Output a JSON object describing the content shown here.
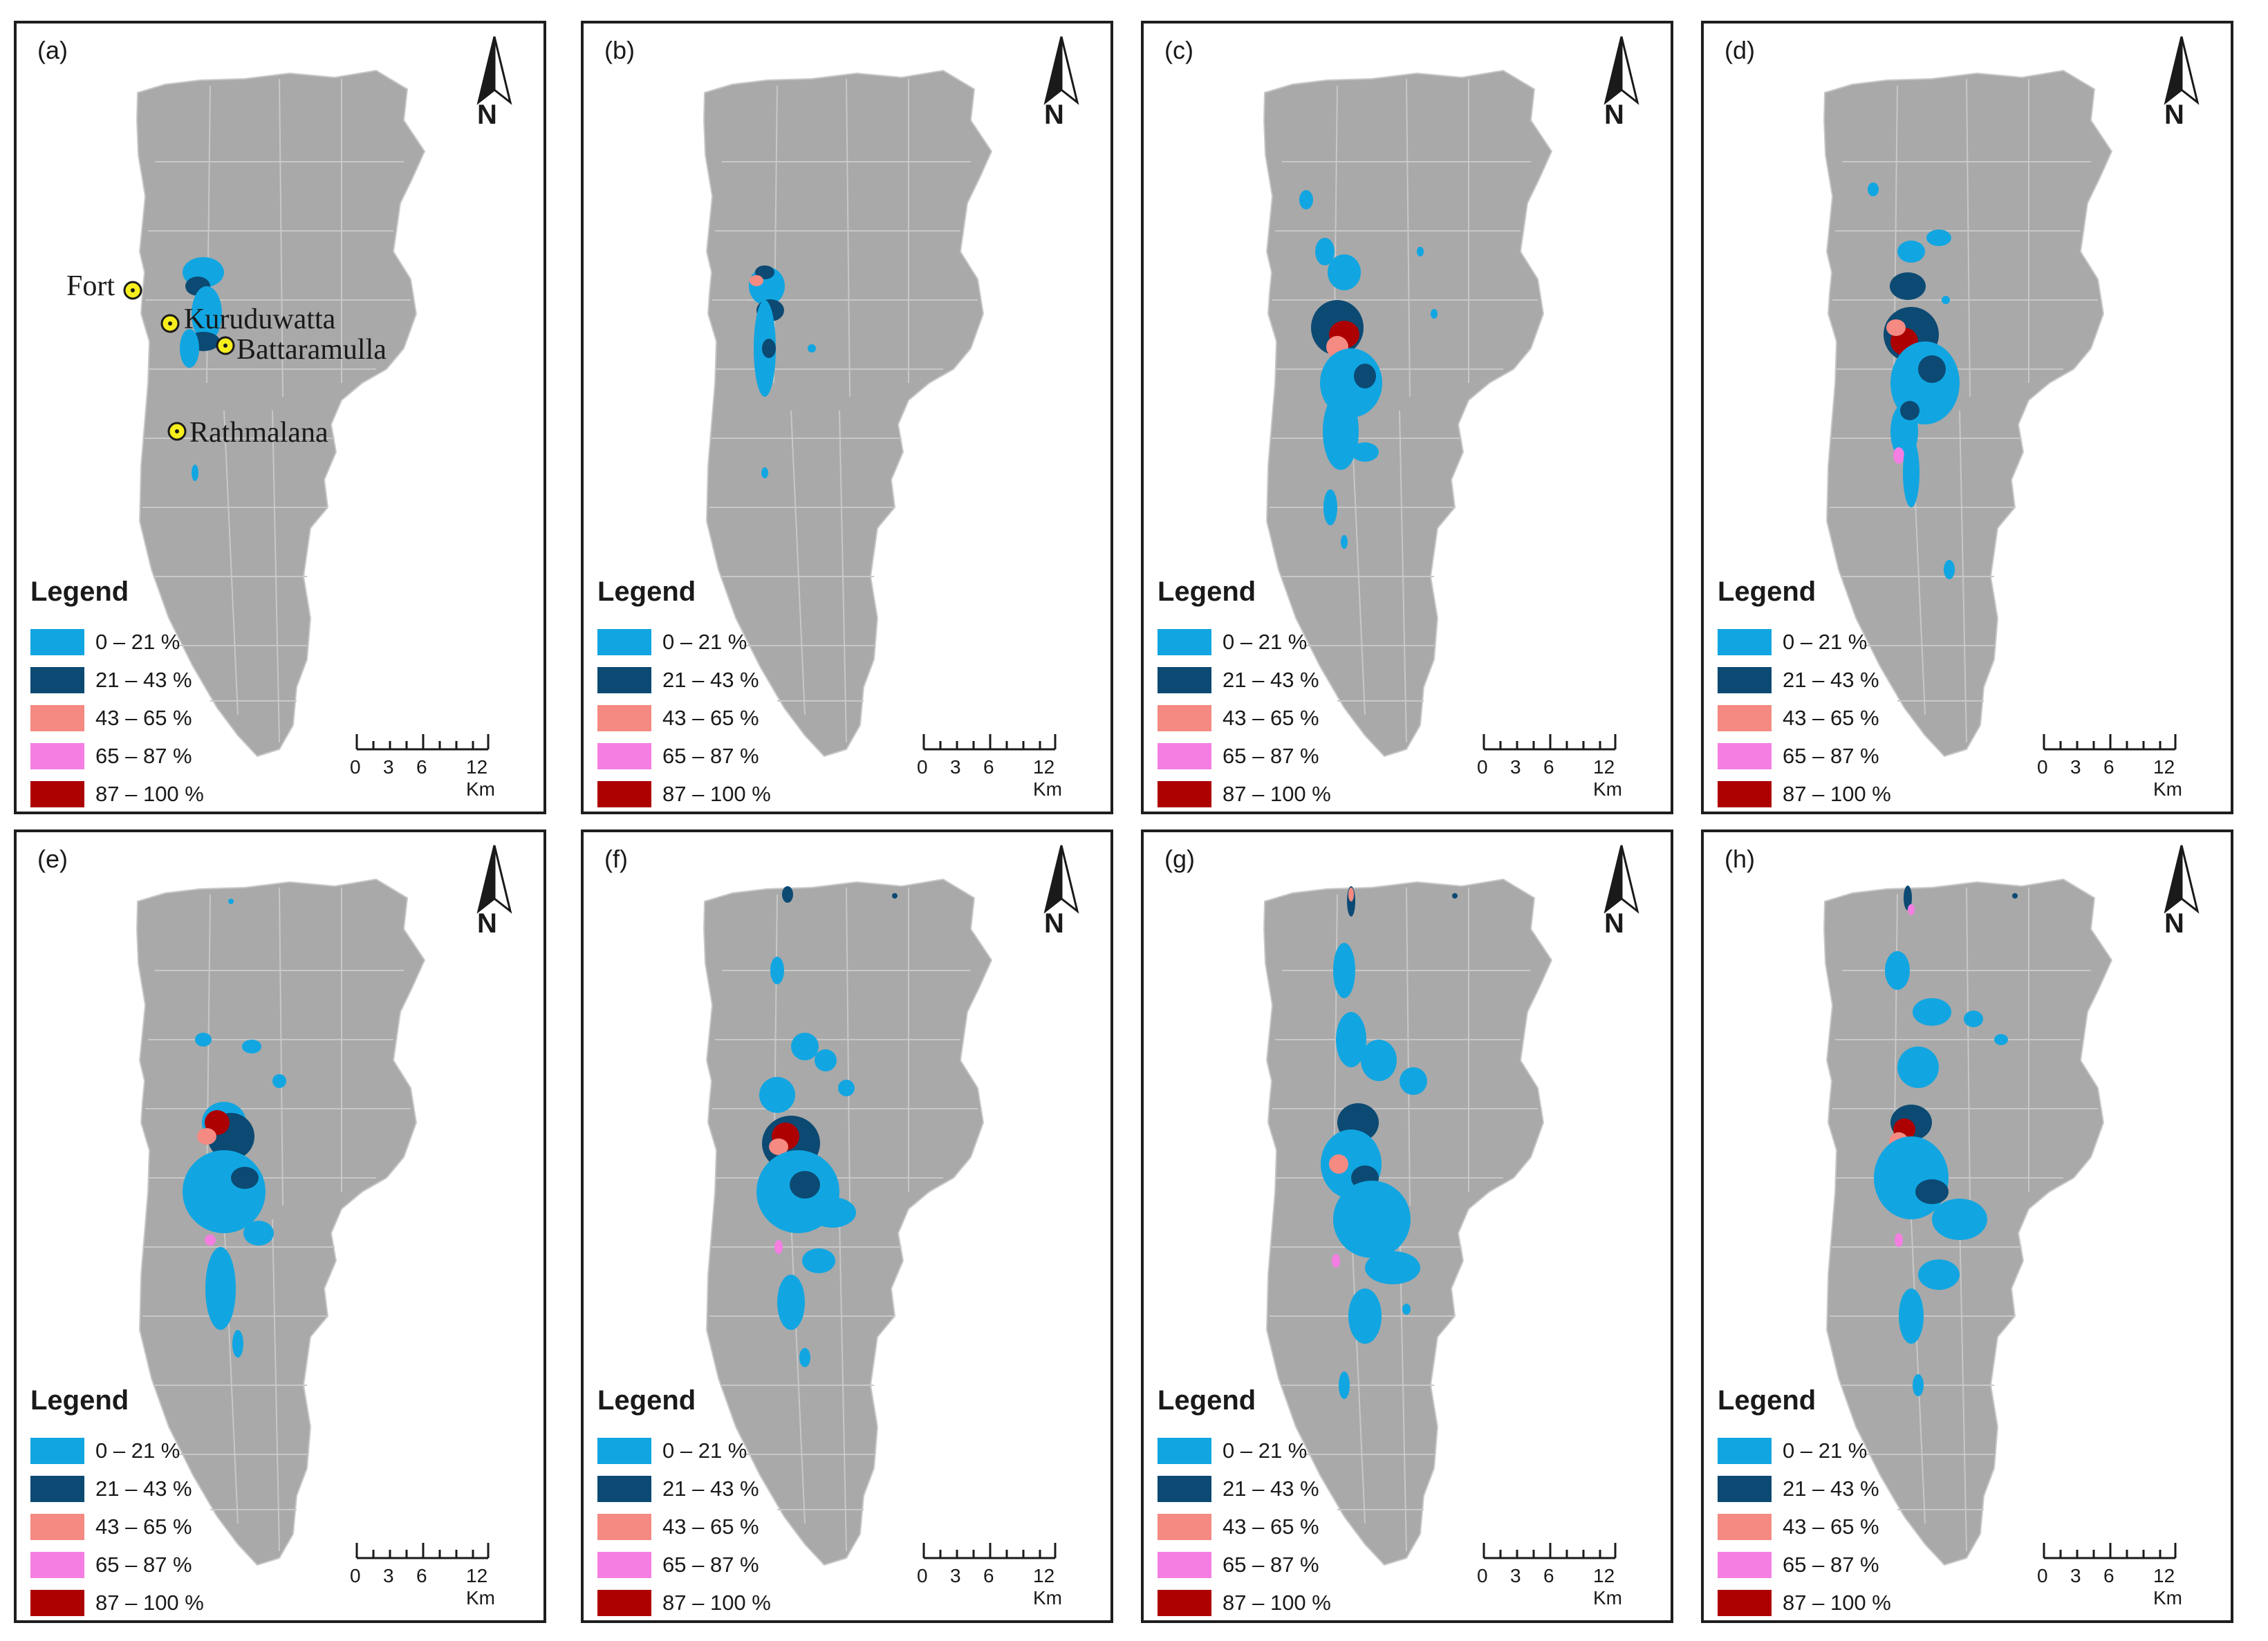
{
  "colors": {
    "land": "#a9a9a9",
    "boundary": "#c8c8c8",
    "c1": "#11a6e1",
    "c2": "#0c4a73",
    "c3": "#f48a82",
    "c4": "#f47ee2",
    "c5": "#ad0000",
    "marker": "#f7ee1d"
  },
  "legend": {
    "title": "Legend",
    "items": [
      {
        "label": "0 – 21 %",
        "color": "#11a6e1"
      },
      {
        "label": "21 – 43 %",
        "color": "#0c4a73"
      },
      {
        "label": "43 – 65 %",
        "color": "#f48a82"
      },
      {
        "label": "65 – 87 %",
        "color": "#f47ee2"
      },
      {
        "label": "87 – 100 %",
        "color": "#ad0000"
      }
    ]
  },
  "north_arrow": {
    "label": "N",
    "icon": "north-arrow-icon"
  },
  "scale_bar": {
    "ticks": [
      "0",
      "3",
      "6",
      "12 Km"
    ]
  },
  "places": [
    {
      "name": "Fort"
    },
    {
      "name": "Kuruduwatta"
    },
    {
      "name": "Battaramulla"
    },
    {
      "name": "Rathmalana"
    }
  ],
  "panels": [
    {
      "id": "a",
      "label": "(a)"
    },
    {
      "id": "b",
      "label": "(b)"
    },
    {
      "id": "c",
      "label": "(c)"
    },
    {
      "id": "d",
      "label": "(d)"
    },
    {
      "id": "e",
      "label": "(e)"
    },
    {
      "id": "f",
      "label": "(f)"
    },
    {
      "id": "g",
      "label": "(g)"
    },
    {
      "id": "h",
      "label": "(h)"
    }
  ]
}
